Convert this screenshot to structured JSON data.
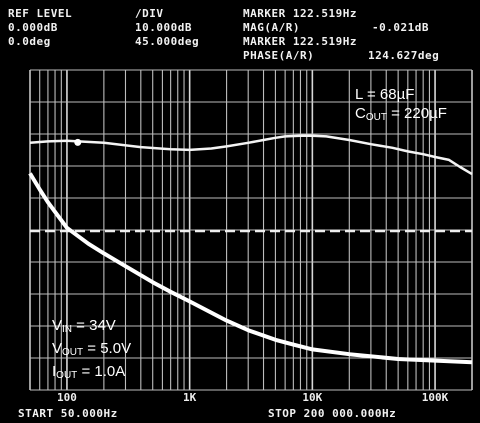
{
  "header": {
    "ref_level_label": "REF LEVEL",
    "ref_level_mag": "0.000dB",
    "ref_level_phase": "0.0deg",
    "div_label": "/DIV",
    "div_mag": "10.000dB",
    "div_phase": "45.000deg",
    "marker_label_1": "MARKER 122.519Hz",
    "marker_mag_label": "MAG(A/R)",
    "marker_mag_value": "-0.021dB",
    "marker_label_2": "MARKER 122.519Hz",
    "marker_phase_label": "PHASE(A/R)",
    "marker_phase_value": "124.627deg"
  },
  "footer": {
    "start": "START 50.000Hz",
    "stop": "STOP 200 000.000Hz"
  },
  "annotations": {
    "inductor": "L = 68µF",
    "cout_label": "C",
    "cout_sub": "OUT",
    "cout_value": " = 220µF",
    "vin_label": "V",
    "vin_sub": "IN",
    "vin_value": " = 34V",
    "vout_label": "V",
    "vout_sub": "OUT",
    "vout_value": " = 5.0V",
    "iout_label": "I",
    "iout_sub": "OUT",
    "iout_value": " = 1.0A"
  },
  "chart_data": {
    "type": "line",
    "x_scale": "log",
    "xlim": [
      50,
      200000
    ],
    "x_tick_labels": [
      "100",
      "1K",
      "10K",
      "100K"
    ],
    "x_tick_values": [
      100,
      1000,
      10000,
      100000
    ],
    "grid": true,
    "series": [
      {
        "quantity": "phase",
        "units": "deg",
        "points": [
          [
            50,
            124
          ],
          [
            70,
            126
          ],
          [
            100,
            127
          ],
          [
            200,
            124
          ],
          [
            400,
            118
          ],
          [
            700,
            115
          ],
          [
            1000,
            114
          ],
          [
            1500,
            116
          ],
          [
            2000,
            119
          ],
          [
            3000,
            124
          ],
          [
            4000,
            128
          ],
          [
            5000,
            131
          ],
          [
            6000,
            133
          ],
          [
            8000,
            134
          ],
          [
            10000,
            134
          ],
          [
            13000,
            133
          ],
          [
            20000,
            128
          ],
          [
            30000,
            122
          ],
          [
            45000,
            117
          ],
          [
            60000,
            112
          ],
          [
            80000,
            108
          ],
          [
            100000,
            104
          ],
          [
            130000,
            100
          ],
          [
            160000,
            90
          ],
          [
            200000,
            80
          ]
        ]
      },
      {
        "quantity": "magnitude",
        "units": "dB",
        "points": [
          [
            50,
            18
          ],
          [
            60,
            13
          ],
          [
            70,
            9
          ],
          [
            80,
            6
          ],
          [
            100,
            1
          ],
          [
            150,
            -4
          ],
          [
            200,
            -7
          ],
          [
            300,
            -11
          ],
          [
            500,
            -16
          ],
          [
            700,
            -19
          ],
          [
            1000,
            -22
          ],
          [
            2000,
            -28
          ],
          [
            3000,
            -31
          ],
          [
            5000,
            -34
          ],
          [
            7000,
            -35.5
          ],
          [
            10000,
            -37
          ],
          [
            20000,
            -38.5
          ],
          [
            50000,
            -40
          ],
          [
            100000,
            -40.5
          ],
          [
            200000,
            -41
          ]
        ]
      }
    ],
    "marker": {
      "x": 122.519,
      "magnitude": -0.021,
      "phase": 124.627
    }
  }
}
